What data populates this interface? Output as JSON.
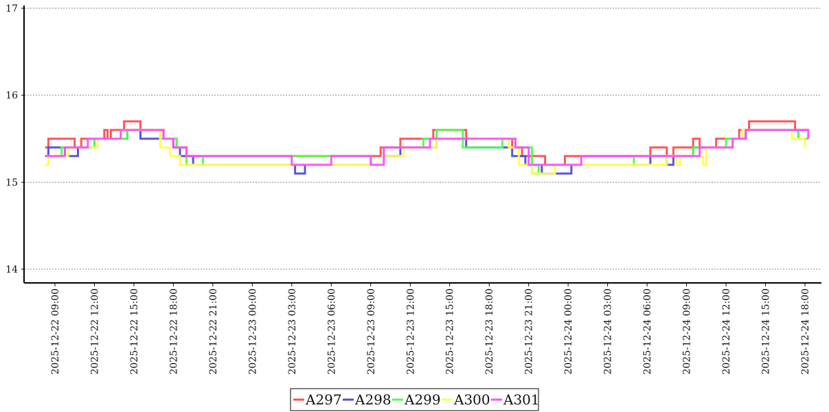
{
  "chart_data": {
    "type": "line",
    "title": "",
    "xlabel": "",
    "ylabel": "",
    "ylim": [
      14,
      17
    ],
    "y_ticks": [
      "14",
      "15",
      "16",
      "17"
    ],
    "y_grid": true,
    "grid_style": "dotted",
    "legend_position": "bottom-center",
    "x_tick_labels": [
      "2025-12-22 09:00",
      "2025-12-22 12:00",
      "2025-12-22 15:00",
      "2025-12-22 18:00",
      "2025-12-22 21:00",
      "2025-12-23 00:00",
      "2025-12-23 03:00",
      "2025-12-23 06:00",
      "2025-12-23 09:00",
      "2025-12-23 12:00",
      "2025-12-23 15:00",
      "2025-12-23 18:00",
      "2025-12-23 21:00",
      "2025-12-24 00:00",
      "2025-12-24 03:00",
      "2025-12-24 06:00",
      "2025-12-24 09:00",
      "2025-12-24 12:00",
      "2025-12-24 15:00",
      "2025-12-24 18:00"
    ],
    "series": [
      {
        "name": "A297",
        "color": "#ff4d4d",
        "points": [
          [
            "2025-12-22 08:15",
            15.4
          ],
          [
            "2025-12-22 08:30",
            15.5
          ],
          [
            "2025-12-22 10:00",
            15.5
          ],
          [
            "2025-12-22 10:30",
            15.4
          ],
          [
            "2025-12-22 11:00",
            15.5
          ],
          [
            "2025-12-22 12:45",
            15.6
          ],
          [
            "2025-12-22 13:00",
            15.5
          ],
          [
            "2025-12-22 13:15",
            15.6
          ],
          [
            "2025-12-22 14:00",
            15.6
          ],
          [
            "2025-12-22 14:15",
            15.7
          ],
          [
            "2025-12-22 15:30",
            15.6
          ],
          [
            "2025-12-22 17:15",
            15.5
          ],
          [
            "2025-12-22 18:15",
            15.4
          ],
          [
            "2025-12-22 19:00",
            15.3
          ],
          [
            "2025-12-22 20:00",
            15.3
          ],
          [
            "2025-12-22 21:00",
            15.3
          ],
          [
            "2025-12-23 09:15",
            15.3
          ],
          [
            "2025-12-23 09:45",
            15.4
          ],
          [
            "2025-12-23 11:15",
            15.5
          ],
          [
            "2025-12-23 12:30",
            15.5
          ],
          [
            "2025-12-23 13:45",
            15.6
          ],
          [
            "2025-12-23 16:15",
            15.5
          ],
          [
            "2025-12-23 19:30",
            15.5
          ],
          [
            "2025-12-23 19:45",
            15.4
          ],
          [
            "2025-12-23 20:30",
            15.3
          ],
          [
            "2025-12-23 22:15",
            15.2
          ],
          [
            "2025-12-23 23:30",
            15.2
          ],
          [
            "2025-12-23 23:45",
            15.3
          ],
          [
            "2025-12-24 06:00",
            15.3
          ],
          [
            "2025-12-24 06:15",
            15.4
          ],
          [
            "2025-12-24 07:30",
            15.3
          ],
          [
            "2025-12-24 08:00",
            15.4
          ],
          [
            "2025-12-24 09:30",
            15.5
          ],
          [
            "2025-12-24 10:00",
            15.4
          ],
          [
            "2025-12-24 11:15",
            15.5
          ],
          [
            "2025-12-24 13:00",
            15.6
          ],
          [
            "2025-12-24 13:45",
            15.7
          ],
          [
            "2025-12-24 17:15",
            15.6
          ],
          [
            "2025-12-24 18:15",
            15.6
          ]
        ]
      },
      {
        "name": "A298",
        "color": "#4d4ddb",
        "points": [
          [
            "2025-12-22 08:15",
            15.3
          ],
          [
            "2025-12-22 08:30",
            15.4
          ],
          [
            "2025-12-22 09:30",
            15.4
          ],
          [
            "2025-12-22 09:45",
            15.3
          ],
          [
            "2025-12-22 10:30",
            15.3
          ],
          [
            "2025-12-22 10:45",
            15.4
          ],
          [
            "2025-12-22 11:45",
            15.4
          ],
          [
            "2025-12-22 12:00",
            15.5
          ],
          [
            "2025-12-22 14:00",
            15.5
          ],
          [
            "2025-12-22 14:30",
            15.6
          ],
          [
            "2025-12-22 15:30",
            15.5
          ],
          [
            "2025-12-22 17:30",
            15.5
          ],
          [
            "2025-12-22 18:00",
            15.4
          ],
          [
            "2025-12-22 18:30",
            15.3
          ],
          [
            "2025-12-22 19:30",
            15.2
          ],
          [
            "2025-12-23 03:00",
            15.2
          ],
          [
            "2025-12-23 03:15",
            15.1
          ],
          [
            "2025-12-23 03:45",
            15.1
          ],
          [
            "2025-12-23 04:00",
            15.2
          ],
          [
            "2025-12-23 09:30",
            15.2
          ],
          [
            "2025-12-23 10:00",
            15.3
          ],
          [
            "2025-12-23 11:00",
            15.3
          ],
          [
            "2025-12-23 11:15",
            15.4
          ],
          [
            "2025-12-23 13:30",
            15.4
          ],
          [
            "2025-12-23 14:00",
            15.5
          ],
          [
            "2025-12-23 16:15",
            15.4
          ],
          [
            "2025-12-23 19:30",
            15.4
          ],
          [
            "2025-12-23 19:45",
            15.3
          ],
          [
            "2025-12-23 20:45",
            15.2
          ],
          [
            "2025-12-23 22:00",
            15.1
          ],
          [
            "2025-12-24 00:15",
            15.2
          ],
          [
            "2025-12-24 06:15",
            15.3
          ],
          [
            "2025-12-24 07:30",
            15.2
          ],
          [
            "2025-12-24 08:00",
            15.3
          ],
          [
            "2025-12-24 09:15",
            15.3
          ],
          [
            "2025-12-24 09:30",
            15.4
          ],
          [
            "2025-12-24 12:30",
            15.5
          ],
          [
            "2025-12-24 13:30",
            15.6
          ],
          [
            "2025-12-24 17:30",
            15.5
          ],
          [
            "2025-12-24 18:15",
            15.5
          ]
        ]
      },
      {
        "name": "A299",
        "color": "#4dff4d",
        "points": [
          [
            "2025-12-22 08:15",
            15.3
          ],
          [
            "2025-12-22 09:30",
            15.4
          ],
          [
            "2025-12-22 11:30",
            15.4
          ],
          [
            "2025-12-22 12:00",
            15.5
          ],
          [
            "2025-12-22 13:30",
            15.5
          ],
          [
            "2025-12-22 14:30",
            15.6
          ],
          [
            "2025-12-22 17:00",
            15.5
          ],
          [
            "2025-12-22 18:15",
            15.4
          ],
          [
            "2025-12-22 19:00",
            15.2
          ],
          [
            "2025-12-22 20:00",
            15.2
          ],
          [
            "2025-12-22 20:15",
            15.3
          ],
          [
            "2025-12-23 09:00",
            15.2
          ],
          [
            "2025-12-23 10:00",
            15.4
          ],
          [
            "2025-12-23 13:00",
            15.5
          ],
          [
            "2025-12-23 14:00",
            15.6
          ],
          [
            "2025-12-23 16:00",
            15.4
          ],
          [
            "2025-12-23 19:00",
            15.5
          ],
          [
            "2025-12-23 20:00",
            15.4
          ],
          [
            "2025-12-23 21:15",
            15.1
          ],
          [
            "2025-12-23 21:45",
            15.2
          ],
          [
            "2025-12-24 01:00",
            15.2
          ],
          [
            "2025-12-24 05:00",
            15.3
          ],
          [
            "2025-12-24 08:30",
            15.3
          ],
          [
            "2025-12-24 09:30",
            15.4
          ],
          [
            "2025-12-24 12:00",
            15.5
          ],
          [
            "2025-12-24 13:15",
            15.6
          ],
          [
            "2025-12-24 17:30",
            15.5
          ],
          [
            "2025-12-24 18:15",
            15.5
          ]
        ]
      },
      {
        "name": "A300",
        "color": "#ffff4d",
        "points": [
          [
            "2025-12-22 08:15",
            15.2
          ],
          [
            "2025-12-22 08:30",
            15.3
          ],
          [
            "2025-12-22 09:45",
            15.3
          ],
          [
            "2025-12-22 10:00",
            15.4
          ],
          [
            "2025-12-22 12:00",
            15.4
          ],
          [
            "2025-12-22 12:15",
            15.5
          ],
          [
            "2025-12-22 13:45",
            15.5
          ],
          [
            "2025-12-22 14:00",
            15.6
          ],
          [
            "2025-12-22 17:00",
            15.4
          ],
          [
            "2025-12-22 17:45",
            15.3
          ],
          [
            "2025-12-22 18:30",
            15.2
          ],
          [
            "2025-12-22 19:15",
            15.2
          ],
          [
            "2025-12-23 09:45",
            15.2
          ],
          [
            "2025-12-23 10:00",
            15.3
          ],
          [
            "2025-12-23 11:30",
            15.4
          ],
          [
            "2025-12-23 14:00",
            15.5
          ],
          [
            "2025-12-23 16:00",
            15.5
          ],
          [
            "2025-12-23 19:30",
            15.4
          ],
          [
            "2025-12-23 20:15",
            15.2
          ],
          [
            "2025-12-23 21:15",
            15.1
          ],
          [
            "2025-12-23 23:00",
            15.2
          ],
          [
            "2025-12-24 06:30",
            15.2
          ],
          [
            "2025-12-24 07:30",
            15.3
          ],
          [
            "2025-12-24 08:15",
            15.2
          ],
          [
            "2025-12-24 08:30",
            15.3
          ],
          [
            "2025-12-24 10:15",
            15.2
          ],
          [
            "2025-12-24 10:30",
            15.4
          ],
          [
            "2025-12-24 12:30",
            15.5
          ],
          [
            "2025-12-24 13:15",
            15.6
          ],
          [
            "2025-12-24 17:00",
            15.5
          ],
          [
            "2025-12-24 18:00",
            15.4
          ]
        ]
      },
      {
        "name": "A301",
        "color": "#ff4dff",
        "points": [
          [
            "2025-12-22 08:15",
            15.3
          ],
          [
            "2025-12-22 09:45",
            15.4
          ],
          [
            "2025-12-22 11:30",
            15.5
          ],
          [
            "2025-12-22 14:00",
            15.6
          ],
          [
            "2025-12-22 15:15",
            15.6
          ],
          [
            "2025-12-22 17:15",
            15.5
          ],
          [
            "2025-12-22 18:00",
            15.4
          ],
          [
            "2025-12-22 18:30",
            15.4
          ],
          [
            "2025-12-22 19:00",
            15.3
          ],
          [
            "2025-12-23 00:00",
            15.3
          ],
          [
            "2025-12-23 03:00",
            15.2
          ],
          [
            "2025-12-23 06:00",
            15.3
          ],
          [
            "2025-12-23 09:00",
            15.2
          ],
          [
            "2025-12-23 10:00",
            15.4
          ],
          [
            "2025-12-23 13:30",
            15.5
          ],
          [
            "2025-12-23 19:00",
            15.5
          ],
          [
            "2025-12-23 20:00",
            15.4
          ],
          [
            "2025-12-23 21:00",
            15.2
          ],
          [
            "2025-12-24 00:00",
            15.2
          ],
          [
            "2025-12-24 01:00",
            15.3
          ],
          [
            "2025-12-24 05:30",
            15.3
          ],
          [
            "2025-12-24 08:00",
            15.3
          ],
          [
            "2025-12-24 10:00",
            15.4
          ],
          [
            "2025-12-24 12:30",
            15.5
          ],
          [
            "2025-12-24 13:30",
            15.6
          ],
          [
            "2025-12-24 17:30",
            15.6
          ],
          [
            "2025-12-24 18:15",
            15.5
          ]
        ]
      }
    ]
  }
}
